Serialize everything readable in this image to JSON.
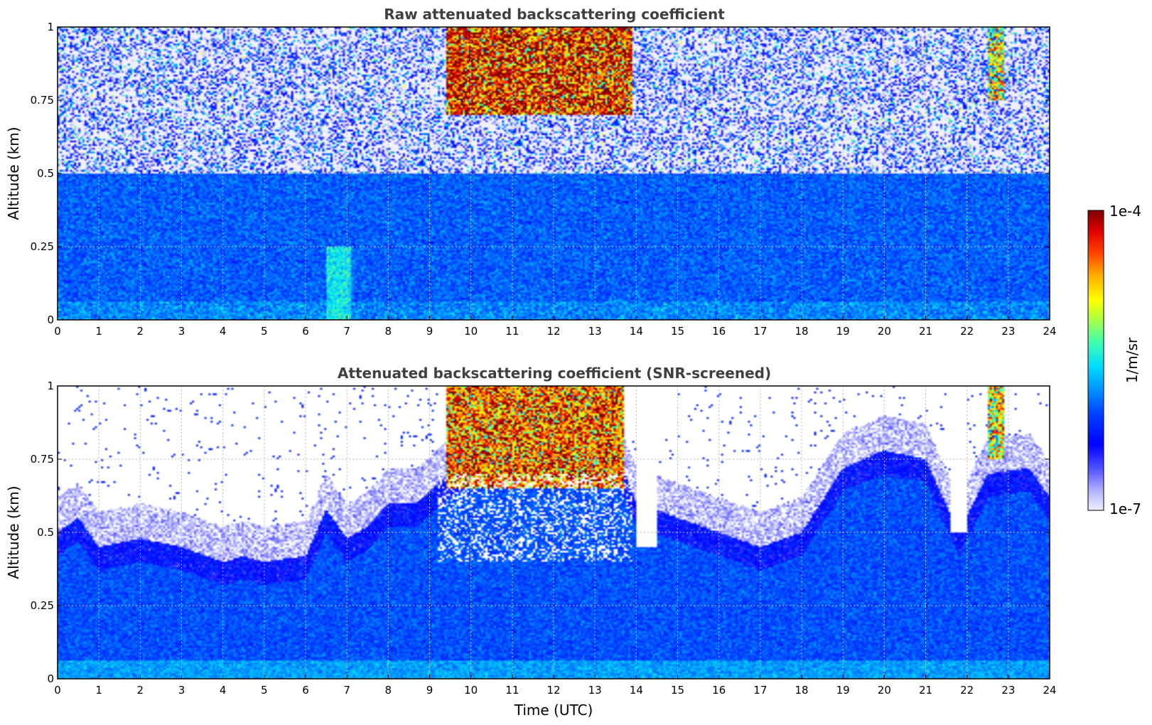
{
  "chart_data": [
    {
      "type": "heatmap",
      "title": "Raw attenuated backscattering coefficient",
      "xlabel": "",
      "ylabel": "Altitude (km)",
      "xlim": [
        0,
        24
      ],
      "ylim": [
        0,
        1
      ],
      "xticks": [
        "0",
        "1",
        "2",
        "3",
        "4",
        "5",
        "6",
        "7",
        "8",
        "9",
        "10",
        "11",
        "12",
        "13",
        "14",
        "15",
        "16",
        "17",
        "18",
        "19",
        "20",
        "21",
        "22",
        "23",
        "24"
      ],
      "yticks": [
        "0",
        "0.25",
        "0.5",
        "0.75",
        "1"
      ],
      "grid": true,
      "features": [
        {
          "description": "boundary layer aerosol",
          "x_range": [
            0,
            24
          ],
          "y_range": [
            0,
            0.5
          ],
          "log10_value": -6.0
        },
        {
          "description": "enhanced aerosol",
          "x_range": [
            6.5,
            7.1
          ],
          "y_range": [
            0,
            0.25
          ],
          "log10_value": -5.5
        },
        {
          "description": "cloud",
          "x_range": [
            9.4,
            13.9
          ],
          "y_range": [
            0.7,
            1.0
          ],
          "log10_value": -4.3
        },
        {
          "description": "cloud",
          "x_range": [
            22.5,
            22.9
          ],
          "y_range": [
            0.75,
            1.0
          ],
          "log10_value": -5.0
        }
      ]
    },
    {
      "type": "heatmap",
      "title": "Attenuated backscattering coefficient (SNR-screened)",
      "xlabel": "Time (UTC)",
      "ylabel": "Altitude (km)",
      "xlim": [
        0,
        24
      ],
      "ylim": [
        0,
        1
      ],
      "xticks": [
        "0",
        "1",
        "2",
        "3",
        "4",
        "5",
        "6",
        "7",
        "8",
        "9",
        "10",
        "11",
        "12",
        "13",
        "14",
        "15",
        "16",
        "17",
        "18",
        "19",
        "20",
        "21",
        "22",
        "23",
        "24"
      ],
      "yticks": [
        "0",
        "0.25",
        "0.5",
        "0.75",
        "1"
      ],
      "grid": true,
      "boundary_layer_top_km": [
        [
          0,
          0.5
        ],
        [
          0.5,
          0.55
        ],
        [
          1,
          0.45
        ],
        [
          2,
          0.48
        ],
        [
          3,
          0.45
        ],
        [
          4,
          0.4
        ],
        [
          4.5,
          0.42
        ],
        [
          5,
          0.4
        ],
        [
          6,
          0.42
        ],
        [
          6.5,
          0.58
        ],
        [
          7,
          0.48
        ],
        [
          7.5,
          0.52
        ],
        [
          8,
          0.6
        ],
        [
          8.7,
          0.6
        ],
        [
          9.3,
          0.68
        ],
        [
          10,
          0.74
        ],
        [
          12,
          0.8
        ],
        [
          13.5,
          0.78
        ],
        [
          14,
          0.6
        ],
        [
          15,
          0.55
        ],
        [
          16,
          0.5
        ],
        [
          17,
          0.45
        ],
        [
          18,
          0.5
        ],
        [
          19,
          0.72
        ],
        [
          20,
          0.78
        ],
        [
          21,
          0.75
        ],
        [
          21.8,
          0.5
        ],
        [
          22.5,
          0.7
        ],
        [
          23.5,
          0.72
        ],
        [
          24,
          0.62
        ]
      ],
      "features": [
        {
          "description": "cloud",
          "x_range": [
            9.4,
            13.7
          ],
          "y_range": [
            0.65,
            1.0
          ],
          "log10_value": -4.5
        },
        {
          "description": "cloud",
          "x_range": [
            22.5,
            22.9
          ],
          "y_range": [
            0.75,
            1.0
          ],
          "log10_value": -5.0
        },
        {
          "description": "screened gap",
          "x_range": [
            14.0,
            14.5
          ],
          "y_range": [
            0.45,
            1.0
          ]
        },
        {
          "description": "screened gap",
          "x_range": [
            21.6,
            22.0
          ],
          "y_range": [
            0.5,
            1.0
          ]
        }
      ]
    }
  ],
  "colorbar": {
    "label": "1/m/sr",
    "max_label": "1e-4",
    "min_label": "1e-7",
    "scale": "log",
    "range": [
      1e-07,
      0.0001
    ],
    "colormap": "jet"
  }
}
